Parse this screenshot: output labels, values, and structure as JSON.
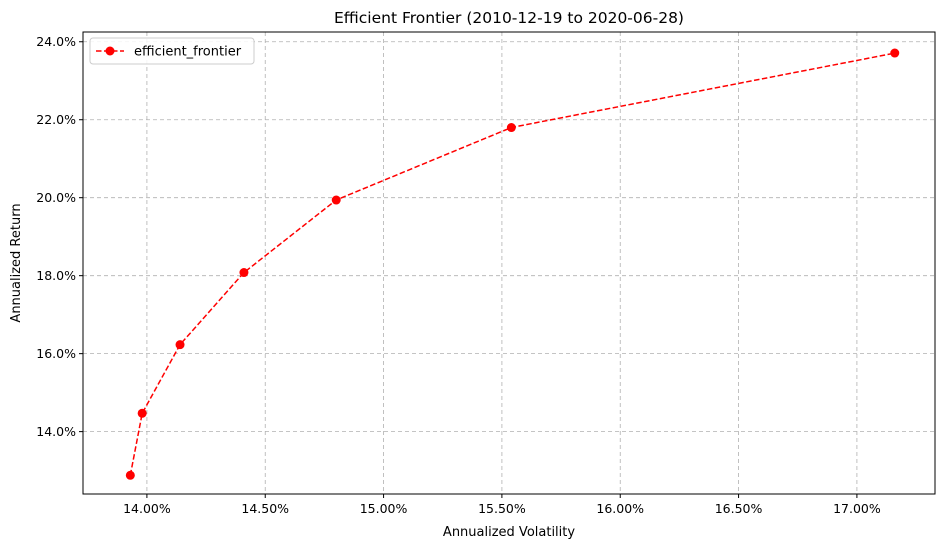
{
  "chart_data": {
    "type": "line",
    "title": "Efficient Frontier (2010-12-19 to 2020-06-28)",
    "xlabel": "Annualized Volatility",
    "ylabel": "Annualized Return",
    "xlim": [
      13.73,
      17.33
    ],
    "ylim": [
      12.4,
      24.25
    ],
    "x_ticks": [
      14.0,
      14.5,
      15.0,
      15.5,
      16.0,
      16.5,
      17.0
    ],
    "x_tick_labels": [
      "14.00%",
      "14.50%",
      "15.00%",
      "15.50%",
      "16.00%",
      "16.50%",
      "17.00%"
    ],
    "y_ticks": [
      14.0,
      16.0,
      18.0,
      20.0,
      22.0,
      24.0
    ],
    "y_tick_labels": [
      "14.0%",
      "16.0%",
      "18.0%",
      "20.0%",
      "22.0%",
      "24.0%"
    ],
    "grid": true,
    "legend_position": "top-left",
    "series": [
      {
        "name": "efficient_frontier",
        "color": "#ff0000",
        "line_style": "dashed",
        "marker": "circle",
        "x": [
          13.93,
          13.98,
          14.14,
          14.41,
          14.8,
          15.54,
          17.16
        ],
        "y": [
          12.88,
          14.47,
          16.23,
          18.08,
          19.94,
          21.8,
          23.71
        ]
      }
    ]
  }
}
